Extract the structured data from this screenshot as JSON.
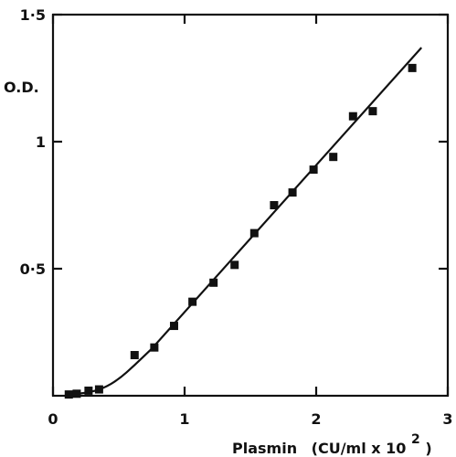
{
  "chart_data": {
    "type": "scatter",
    "ylabel": "O.D.",
    "xlabel_main": "Plasmin",
    "xlabel_unit": "(CU/ml x 10",
    "xlabel_exp": "2",
    "xlabel_close": ")",
    "xlim": [
      0,
      3
    ],
    "ylim": [
      0,
      1.5
    ],
    "x_tick_values": [
      0,
      1,
      2,
      3
    ],
    "x_tick_labels": [
      "0",
      "1",
      "2",
      "3"
    ],
    "y_tick_values": [
      0.5,
      1,
      1.5
    ],
    "y_tick_labels": [
      "0·5",
      "1",
      "1·5"
    ],
    "grid": false,
    "series": [
      {
        "points": [
          {
            "x": 0.12,
            "y": 0.005
          },
          {
            "x": 0.18,
            "y": 0.008
          },
          {
            "x": 0.27,
            "y": 0.02
          },
          {
            "x": 0.35,
            "y": 0.025
          },
          {
            "x": 0.62,
            "y": 0.16
          },
          {
            "x": 0.77,
            "y": 0.19
          },
          {
            "x": 0.92,
            "y": 0.275
          },
          {
            "x": 1.06,
            "y": 0.37
          },
          {
            "x": 1.22,
            "y": 0.445
          },
          {
            "x": 1.38,
            "y": 0.515
          },
          {
            "x": 1.53,
            "y": 0.64
          },
          {
            "x": 1.68,
            "y": 0.75
          },
          {
            "x": 1.82,
            "y": 0.8
          },
          {
            "x": 1.98,
            "y": 0.89
          },
          {
            "x": 2.13,
            "y": 0.94
          },
          {
            "x": 2.28,
            "y": 1.1
          },
          {
            "x": 2.43,
            "y": 1.12
          },
          {
            "x": 2.73,
            "y": 1.29
          }
        ],
        "fit_curve": [
          {
            "x": 0.12,
            "y": 0.005
          },
          {
            "x": 0.25,
            "y": 0.01
          },
          {
            "x": 0.38,
            "y": 0.028
          },
          {
            "x": 0.5,
            "y": 0.065
          },
          {
            "x": 0.62,
            "y": 0.12
          },
          {
            "x": 0.75,
            "y": 0.185
          },
          {
            "x": 2.8,
            "y": 1.37
          }
        ]
      }
    ]
  }
}
